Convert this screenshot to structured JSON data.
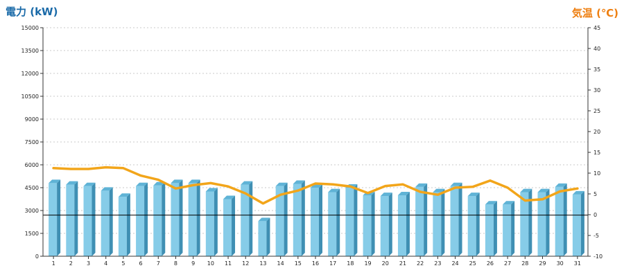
{
  "chart_data": {
    "type": "bar",
    "left_axis_title": "電力 (kW)",
    "right_axis_title": "気温 (℃)",
    "left_axis_color": "#1a6aa8",
    "right_axis_color": "#ee7f10",
    "bar_color_front": "#86cce8",
    "bar_color_top": "#5fb3d6",
    "bar_color_side": "#3f8fb3",
    "line_color": "#f2a51a",
    "grid": true,
    "reference_line": {
      "axis": "left",
      "value": 2700
    },
    "categories": [
      "1",
      "2",
      "3",
      "4",
      "5",
      "6",
      "7",
      "8",
      "9",
      "10",
      "11",
      "12",
      "13",
      "14",
      "15",
      "16",
      "17",
      "18",
      "19",
      "20",
      "21",
      "22",
      "23",
      "24",
      "25",
      "26",
      "27",
      "28",
      "29",
      "30",
      "31"
    ],
    "y_left": {
      "min": 0,
      "max": 15000,
      "ticks": [
        "0",
        "1500",
        "3000",
        "4500",
        "6000",
        "7500",
        "9000",
        "10500",
        "12000",
        "13500",
        "15000"
      ]
    },
    "y_right": {
      "min": -10,
      "max": 45,
      "ticks": [
        "-10",
        "-5",
        "0",
        "5",
        "10",
        "15",
        "20",
        "25",
        "30",
        "35",
        "40",
        "45"
      ]
    },
    "series": [
      {
        "type": "bar",
        "axis": "left",
        "values": [
          4800,
          4700,
          4600,
          4300,
          3900,
          4600,
          4650,
          4800,
          4800,
          4250,
          3750,
          4700,
          2300,
          4600,
          4750,
          4500,
          4200,
          4500,
          4000,
          3950,
          4000,
          4550,
          4200,
          4600,
          3950,
          3400,
          3400,
          4200,
          4200,
          4550,
          4050
        ]
      },
      {
        "type": "line",
        "axis": "right",
        "values": [
          11.2,
          11.0,
          11.0,
          11.4,
          11.2,
          9.4,
          8.4,
          6.3,
          7.1,
          7.6,
          6.8,
          5.1,
          2.7,
          4.8,
          5.8,
          7.5,
          7.3,
          6.8,
          5.2,
          6.9,
          7.3,
          5.5,
          4.8,
          6.5,
          6.7,
          8.2,
          6.5,
          3.4,
          3.7,
          5.6,
          6.3
        ]
      }
    ]
  }
}
